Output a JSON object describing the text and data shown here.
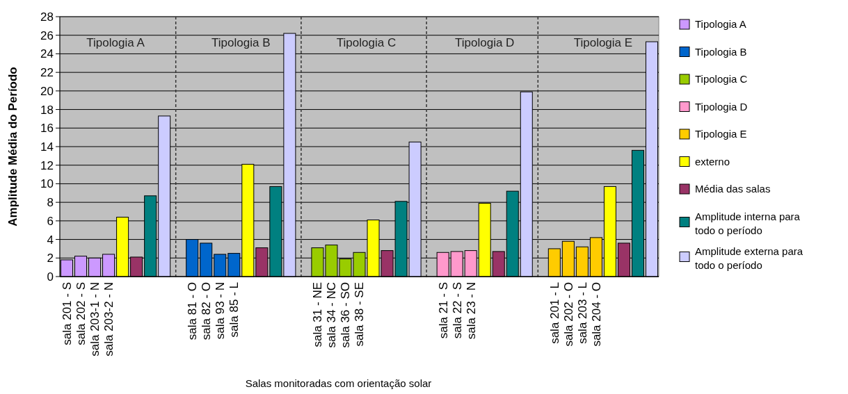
{
  "chart_data": {
    "type": "bar",
    "xlabel": "Salas monitoradas com orientação solar",
    "ylabel": "Amplitude Média do Período",
    "categories": [
      "sala 201 - S",
      "sala 202 - S",
      "sala 203-1 - N",
      "sala 203-2 - N",
      null,
      null,
      null,
      null,
      null,
      "sala 81 - O",
      "sala 82 - O",
      "sala 93 - N",
      "sala 85 - L",
      null,
      null,
      null,
      null,
      null,
      "sala 31 - NE",
      "sala 34 - NC",
      "sala 36 - SO",
      "sala 38 - SE",
      null,
      null,
      null,
      null,
      null,
      "sala 21 - S",
      "sala 22 - S",
      "sala 23 - N",
      null,
      null,
      null,
      null,
      null,
      "sala 201 - L",
      "sala 202 - O",
      "sala 203 - L",
      "sala 204 - O",
      null,
      null,
      null,
      null
    ],
    "series": [
      {
        "name": "Tipologia A",
        "color": "#cc99ff",
        "values": [
          1.8,
          2.2,
          2.0,
          2.4,
          null,
          null,
          null,
          null,
          null,
          null,
          null,
          null,
          null,
          null,
          null,
          null,
          null,
          null,
          null,
          null,
          null,
          null,
          null,
          null,
          null,
          null,
          null,
          null,
          null,
          null,
          null,
          null,
          null,
          null,
          null,
          null,
          null,
          null,
          null,
          null,
          null,
          null,
          null
        ]
      },
      {
        "name": "Tipologia B",
        "color": "#0066cc",
        "values": [
          null,
          null,
          null,
          null,
          null,
          null,
          null,
          null,
          null,
          4.0,
          3.6,
          2.4,
          2.5,
          null,
          null,
          null,
          null,
          null,
          null,
          null,
          null,
          null,
          null,
          null,
          null,
          null,
          null,
          null,
          null,
          null,
          null,
          null,
          null,
          null,
          null,
          null,
          null,
          null,
          null,
          null,
          null,
          null,
          null
        ]
      },
      {
        "name": "Tipologia C",
        "color": "#99cc00",
        "values": [
          null,
          null,
          null,
          null,
          null,
          null,
          null,
          null,
          null,
          null,
          null,
          null,
          null,
          null,
          null,
          null,
          null,
          null,
          3.1,
          3.4,
          1.9,
          2.6,
          null,
          null,
          null,
          null,
          null,
          null,
          null,
          null,
          null,
          null,
          null,
          null,
          null,
          null,
          null,
          null,
          null,
          null,
          null,
          null,
          null
        ]
      },
      {
        "name": "Tipologia D",
        "color": "#ff99cc",
        "values": [
          null,
          null,
          null,
          null,
          null,
          null,
          null,
          null,
          null,
          null,
          null,
          null,
          null,
          null,
          null,
          null,
          null,
          null,
          null,
          null,
          null,
          null,
          null,
          null,
          null,
          null,
          null,
          2.6,
          2.7,
          2.8,
          null,
          null,
          null,
          null,
          null,
          null,
          null,
          null,
          null,
          null,
          null,
          null,
          null
        ]
      },
      {
        "name": "Tipologia E",
        "color": "#ffcc00",
        "values": [
          null,
          null,
          null,
          null,
          null,
          null,
          null,
          null,
          null,
          null,
          null,
          null,
          null,
          null,
          null,
          null,
          null,
          null,
          null,
          null,
          null,
          null,
          null,
          null,
          null,
          null,
          null,
          null,
          null,
          null,
          null,
          null,
          null,
          null,
          null,
          3.0,
          3.8,
          3.2,
          4.2,
          null,
          null,
          null,
          null
        ]
      },
      {
        "name": "externo",
        "color": "#ffff00",
        "values": [
          null,
          null,
          null,
          null,
          6.4,
          null,
          null,
          null,
          null,
          null,
          null,
          null,
          null,
          12.1,
          null,
          null,
          null,
          null,
          null,
          null,
          null,
          null,
          6.1,
          null,
          null,
          null,
          null,
          null,
          null,
          null,
          7.9,
          null,
          null,
          null,
          null,
          null,
          null,
          null,
          null,
          9.7,
          null,
          null,
          null
        ]
      },
      {
        "name": "Média das salas",
        "color": "#993366",
        "values": [
          null,
          null,
          null,
          null,
          null,
          2.1,
          null,
          null,
          null,
          null,
          null,
          null,
          null,
          null,
          3.1,
          null,
          null,
          null,
          null,
          null,
          null,
          null,
          null,
          2.8,
          null,
          null,
          null,
          null,
          null,
          null,
          null,
          2.7,
          null,
          null,
          null,
          null,
          null,
          null,
          null,
          null,
          3.6,
          null,
          null
        ]
      },
      {
        "name": "Amplitude interna para todo o período",
        "color": "#008080",
        "values": [
          null,
          null,
          null,
          null,
          null,
          null,
          8.7,
          null,
          null,
          null,
          null,
          null,
          null,
          null,
          null,
          9.7,
          null,
          null,
          null,
          null,
          null,
          null,
          null,
          null,
          8.1,
          null,
          null,
          null,
          null,
          null,
          null,
          null,
          9.2,
          null,
          null,
          null,
          null,
          null,
          null,
          null,
          null,
          13.6,
          null
        ]
      },
      {
        "name": "Amplitude externa para todo o período",
        "color": "#ccccff",
        "values": [
          null,
          null,
          null,
          null,
          null,
          null,
          null,
          17.3,
          null,
          null,
          null,
          null,
          null,
          null,
          null,
          null,
          26.2,
          null,
          null,
          null,
          null,
          null,
          null,
          null,
          null,
          14.5,
          null,
          null,
          null,
          null,
          null,
          null,
          null,
          19.9,
          null,
          null,
          null,
          null,
          null,
          null,
          null,
          null,
          25.3
        ]
      }
    ],
    "annotations": [
      "Tipologia A",
      "Tipologia B",
      "Tipologia C",
      "Tipologia D",
      "Tipologia E"
    ],
    "ylim": [
      0,
      28
    ],
    "yticks": [
      0,
      2,
      4,
      6,
      8,
      10,
      12,
      14,
      16,
      18,
      20,
      22,
      24,
      26,
      28
    ],
    "grid": "y",
    "legend": "right"
  }
}
